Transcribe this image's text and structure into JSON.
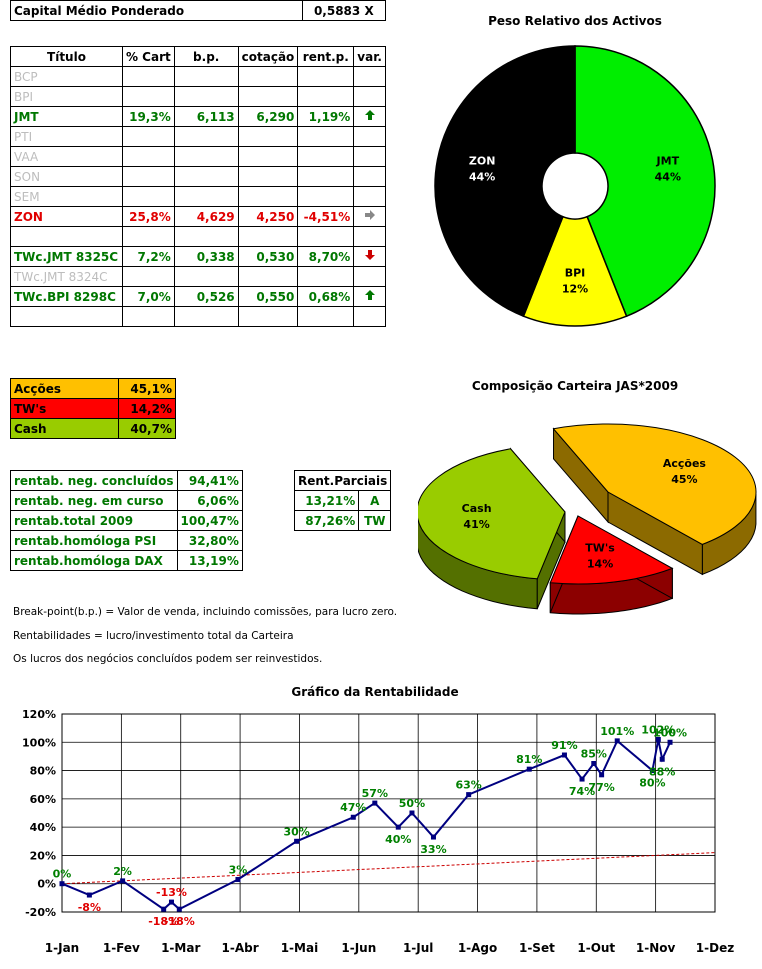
{
  "capital": {
    "label": "Capital Médio Ponderado",
    "value": "0,5883 X"
  },
  "main_table": {
    "headers": [
      "Título",
      "% Cart",
      "b.p.",
      "cotação",
      "rent.p.",
      "var."
    ],
    "rows": [
      {
        "titulo": "BCP",
        "cart": "",
        "bp": "",
        "cot": "",
        "rent": "",
        "var": "",
        "style": "grey"
      },
      {
        "titulo": "BPI",
        "cart": "",
        "bp": "",
        "cot": "",
        "rent": "",
        "var": "",
        "style": "grey"
      },
      {
        "titulo": "JMT",
        "cart": "19,3%",
        "bp": "6,113",
        "cot": "6,290",
        "rent": "1,19%",
        "var": "up",
        "style": "green"
      },
      {
        "titulo": "PTI",
        "cart": "",
        "bp": "",
        "cot": "",
        "rent": "",
        "var": "",
        "style": "grey"
      },
      {
        "titulo": "VAA",
        "cart": "",
        "bp": "",
        "cot": "",
        "rent": "",
        "var": "",
        "style": "grey"
      },
      {
        "titulo": "SON",
        "cart": "",
        "bp": "",
        "cot": "",
        "rent": "",
        "var": "",
        "style": "grey"
      },
      {
        "titulo": "SEM",
        "cart": "",
        "bp": "",
        "cot": "",
        "rent": "",
        "var": "",
        "style": "grey"
      },
      {
        "titulo": "ZON",
        "cart": "25,8%",
        "bp": "4,629",
        "cot": "4,250",
        "rent": "-4,51%",
        "var": "right",
        "style": "red"
      },
      {
        "titulo": "",
        "cart": "",
        "bp": "",
        "cot": "",
        "rent": "",
        "var": "",
        "style": "grey"
      },
      {
        "titulo": "TWc.JMT 8325C",
        "cart": "7,2%",
        "bp": "0,338",
        "cot": "0,530",
        "rent": "8,70%",
        "var": "down",
        "style": "green"
      },
      {
        "titulo": "TWc.JMT 8324C",
        "cart": "",
        "bp": "",
        "cot": "",
        "rent": "",
        "var": "",
        "style": "grey"
      },
      {
        "titulo": "TWc.BPI 8298C",
        "cart": "7,0%",
        "bp": "0,526",
        "cot": "0,550",
        "rent": "0,68%",
        "var": "up",
        "style": "green"
      },
      {
        "titulo": "",
        "cart": "",
        "bp": "",
        "cot": "",
        "rent": "",
        "var": "",
        "style": "grey"
      }
    ]
  },
  "composition": [
    {
      "label": "Acções",
      "value": "45,1%",
      "color": "#ffc000"
    },
    {
      "label": "TW's",
      "value": "14,2%",
      "color": "#ff0000"
    },
    {
      "label": "Cash",
      "value": "40,7%",
      "color": "#99cc00"
    }
  ],
  "rentab": [
    {
      "label": "rentab. neg. concluídos",
      "value": "94,41%"
    },
    {
      "label": "rentab. neg. em curso",
      "value": "6,06%"
    },
    {
      "label": "rentab.total 2009",
      "value": "100,47%"
    },
    {
      "label": "rentab.homóloga PSI",
      "value": "32,80%"
    },
    {
      "label": "rentab.homóloga DAX",
      "value": "13,19%"
    }
  ],
  "parciais": {
    "header": "Rent.Parciais",
    "rows": [
      {
        "value": "13,21%",
        "tag": "A"
      },
      {
        "value": "87,26%",
        "tag": "TW"
      }
    ]
  },
  "notes": [
    "Break-point(b.p.) = Valor de venda, incluindo comissões, para lucro zero.",
    "Rentabilidades = lucro/investimento total da Carteira",
    "Os lucros dos negócios concluídos podem ser reinvestidos."
  ],
  "chart_data": [
    {
      "type": "pie",
      "title": "Peso Relativo dos Activos",
      "style": "doughnut",
      "slices": [
        {
          "label": "JMT",
          "value": 44,
          "color": "#00ee00"
        },
        {
          "label": "BPI",
          "value": 12,
          "color": "#ffff00"
        },
        {
          "label": "ZON",
          "value": 44,
          "color": "#000000"
        }
      ]
    },
    {
      "type": "pie",
      "title": "Composição Carteira JAS*2009",
      "style": "3d-exploded",
      "slices": [
        {
          "label": "Acções",
          "value": 45,
          "color": "#ffc000"
        },
        {
          "label": "TW's",
          "value": 14,
          "color": "#ff0000"
        },
        {
          "label": "Cash",
          "value": 41,
          "color": "#99cc00"
        }
      ]
    },
    {
      "type": "line",
      "title": "Gráfico da Rentabilidade",
      "x_ticks": [
        "1-Jan",
        "1-Fev",
        "1-Mar",
        "1-Abr",
        "1-Mai",
        "1-Jun",
        "1-Jul",
        "1-Ago",
        "1-Set",
        "1-Out",
        "1-Nov",
        "1-Dez"
      ],
      "y_ticks": [
        "-20%",
        "0%",
        "20%",
        "40%",
        "60%",
        "80%",
        "100%",
        "120%"
      ],
      "ylim": [
        -20,
        120
      ],
      "grid": true,
      "series": [
        {
          "color": "#000080",
          "points": [
            {
              "x": "2009-01-01",
              "y": 0,
              "label": "0%"
            },
            {
              "x": "2009-01-15",
              "y": -8,
              "label": "-8%"
            },
            {
              "x": "2009-02-01",
              "y": 2,
              "label": "2%"
            },
            {
              "x": "2009-02-22",
              "y": -18,
              "label": "-18%"
            },
            {
              "x": "2009-02-26",
              "y": -13,
              "label": "-13%"
            },
            {
              "x": "2009-03-02",
              "y": -18,
              "label": "-18%"
            },
            {
              "x": "2009-04-01",
              "y": 3,
              "label": "3%"
            },
            {
              "x": "2009-05-01",
              "y": 30,
              "label": "30%"
            },
            {
              "x": "2009-05-30",
              "y": 47,
              "label": "47%"
            },
            {
              "x": "2009-06-10",
              "y": 57,
              "label": "57%"
            },
            {
              "x": "2009-06-22",
              "y": 40,
              "label": "40%"
            },
            {
              "x": "2009-06-29",
              "y": 50,
              "label": "50%"
            },
            {
              "x": "2009-07-10",
              "y": 33,
              "label": "33%"
            },
            {
              "x": "2009-07-28",
              "y": 63,
              "label": "63%"
            },
            {
              "x": "2009-08-28",
              "y": 81,
              "label": "81%"
            },
            {
              "x": "2009-09-15",
              "y": 91,
              "label": "91%"
            },
            {
              "x": "2009-09-24",
              "y": 74,
              "label": "74%"
            },
            {
              "x": "2009-09-30",
              "y": 85,
              "label": "85%"
            },
            {
              "x": "2009-10-04",
              "y": 77,
              "label": "77%"
            },
            {
              "x": "2009-10-12",
              "y": 101,
              "label": "101%"
            },
            {
              "x": "2009-10-30",
              "y": 80,
              "label": "80%"
            },
            {
              "x": "2009-11-02",
              "y": 102,
              "label": "102%"
            },
            {
              "x": "2009-11-04",
              "y": 88,
              "label": "88%"
            },
            {
              "x": "2009-11-08",
              "y": 100,
              "label": "100%"
            }
          ]
        },
        {
          "color": "#cc0000",
          "style": "dashed",
          "points": [
            {
              "x": "2009-01-01",
              "y": 0
            },
            {
              "x": "2009-12-01",
              "y": 22
            }
          ]
        }
      ]
    }
  ]
}
